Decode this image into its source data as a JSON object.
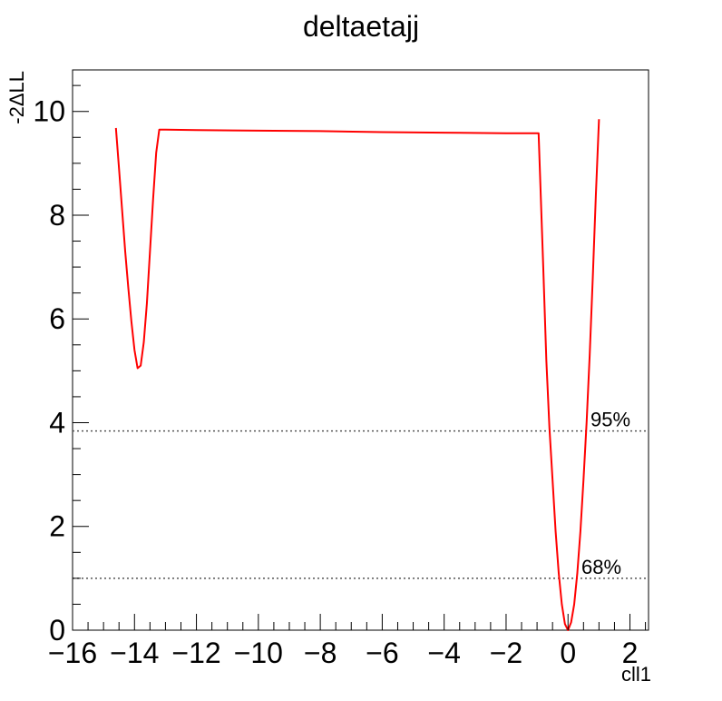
{
  "chart_data": {
    "type": "line",
    "title": "deltaetajj",
    "xlabel": "cll1",
    "ylabel": "-2ΔLL",
    "xlim": [
      -16,
      2.6
    ],
    "ylim": [
      0,
      10.8
    ],
    "x_ticks": [
      -16,
      -14,
      -12,
      -10,
      -8,
      -6,
      -4,
      -2,
      0,
      2
    ],
    "x_tick_labels": [
      "−16",
      "−14",
      "−12",
      "−10",
      "−8",
      "−6",
      "−4",
      "−2",
      "0",
      "2"
    ],
    "y_ticks": [
      0,
      2,
      4,
      6,
      8,
      10
    ],
    "y_tick_labels": [
      "0",
      "2",
      "4",
      "6",
      "8",
      "10"
    ],
    "grid": false,
    "series": [
      {
        "color": "#ff0000",
        "x": [
          -14.6,
          -14.5,
          -14.4,
          -14.3,
          -14.2,
          -14.1,
          -14.0,
          -13.9,
          -13.8,
          -13.7,
          -13.6,
          -13.5,
          -13.4,
          -13.3,
          -13.2,
          -13.0,
          -12.0,
          -10.0,
          -8.0,
          -6.0,
          -4.0,
          -2.0,
          -0.95,
          -0.8,
          -0.7,
          -0.6,
          -0.5,
          -0.4,
          -0.3,
          -0.2,
          -0.1,
          0.0,
          0.1,
          0.2,
          0.3,
          0.4,
          0.5,
          0.6,
          0.7,
          0.8,
          0.9,
          1.0
        ],
        "y": [
          9.68,
          8.9,
          8.1,
          7.3,
          6.6,
          5.95,
          5.4,
          5.05,
          5.1,
          5.55,
          6.3,
          7.3,
          8.3,
          9.2,
          9.65,
          9.65,
          9.64,
          9.63,
          9.62,
          9.6,
          9.59,
          9.58,
          9.58,
          7.0,
          5.2,
          3.9,
          2.9,
          1.9,
          1.1,
          0.5,
          0.12,
          0.0,
          0.15,
          0.5,
          1.1,
          1.9,
          2.9,
          4.0,
          5.3,
          6.8,
          8.4,
          9.85
        ]
      }
    ],
    "reference_lines": [
      {
        "y": 3.84,
        "label": "95%",
        "style": "dotted",
        "color": "#555555"
      },
      {
        "y": 1.0,
        "label": "68%",
        "style": "dotted",
        "color": "#555555"
      }
    ],
    "legend": "none"
  }
}
